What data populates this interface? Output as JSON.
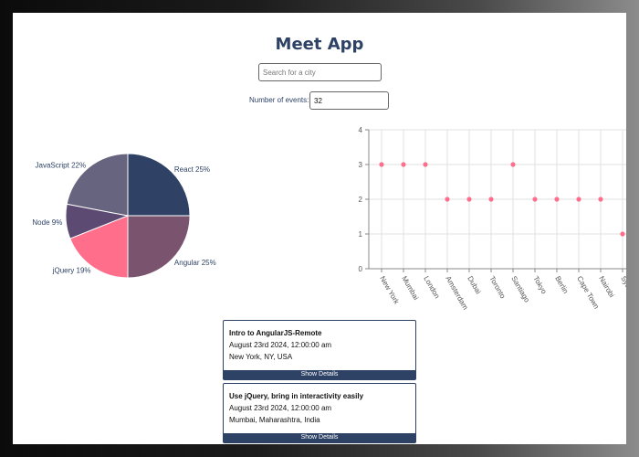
{
  "app": {
    "title": "Meet App"
  },
  "search": {
    "placeholder": "Search for a city"
  },
  "events_count": {
    "label": "Number of events:",
    "value": "32"
  },
  "colors": {
    "navy": "#2e4266",
    "pink": "#ff6f8c"
  },
  "chart_data": [
    {
      "type": "pie",
      "slices": [
        {
          "label": "React 25%",
          "value": 25,
          "color": "#2f4266"
        },
        {
          "label": "Angular 25%",
          "value": 25,
          "color": "#7a546f"
        },
        {
          "label": "jQuery 19%",
          "value": 19,
          "color": "#ff6f8c"
        },
        {
          "label": "Node 9%",
          "value": 9,
          "color": "#5c4a73"
        },
        {
          "label": "JavaScript 22%",
          "value": 22,
          "color": "#66647e"
        }
      ]
    },
    {
      "type": "scatter",
      "categories": [
        "New York",
        "Mumbai",
        "London",
        "Amsterdam",
        "Dubai",
        "Toronto",
        "Santiago",
        "Tokyo",
        "Berlin",
        "Cape Town",
        "Nairobi",
        "Sydney NSW"
      ],
      "values": [
        3,
        3,
        3,
        2,
        2,
        2,
        3,
        2,
        2,
        2,
        2,
        1
      ],
      "ylim": [
        0,
        4
      ],
      "yticks": [
        "0",
        "1",
        "2",
        "3",
        "4"
      ],
      "grid": true,
      "color": "#ff6f8c"
    }
  ],
  "events": [
    {
      "title": "Intro to AngularJS-Remote",
      "date": "August 23rd 2024, 12:00:00 am",
      "location": "New York, NY, USA",
      "button": "Show Details"
    },
    {
      "title": "Use jQuery, bring in interactivity easily",
      "date": "August 23rd 2024, 12:00:00 am",
      "location": "Mumbai, Maharashtra, India",
      "button": "Show Details"
    }
  ]
}
